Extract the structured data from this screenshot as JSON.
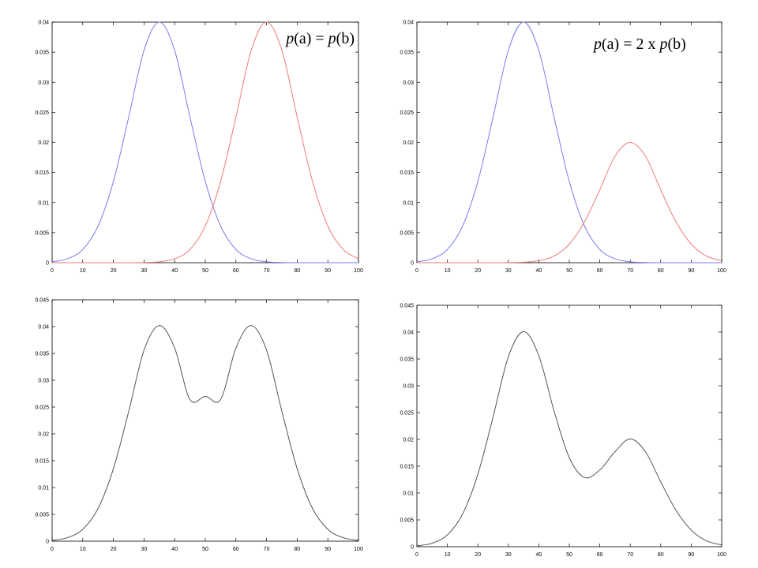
{
  "chart_data": [
    {
      "type": "line",
      "position": "top-left",
      "annotation": {
        "text": "p(a) = p(b)",
        "parts": [
          {
            "text": "p",
            "italic": true
          },
          {
            "text": "(a) = ",
            "italic": false
          },
          {
            "text": "p",
            "italic": true
          },
          {
            "text": "(b)",
            "italic": false
          }
        ]
      },
      "xlim": [
        0,
        100
      ],
      "ylim": [
        0,
        0.04
      ],
      "xticks": [
        0,
        10,
        20,
        30,
        40,
        50,
        60,
        70,
        80,
        90,
        100
      ],
      "yticks": [
        0,
        0.005,
        0.01,
        0.015,
        0.02,
        0.025,
        0.03,
        0.035,
        0.04
      ],
      "yticklabels": [
        "0",
        "0.005",
        "0.01",
        "0.015",
        "0.02",
        "0.025",
        "0.03",
        "0.035",
        "0.04"
      ],
      "x": [
        0,
        5,
        10,
        15,
        20,
        25,
        30,
        35,
        40,
        45,
        50,
        55,
        60,
        65,
        70,
        75,
        80,
        85,
        90,
        95,
        100
      ],
      "series": [
        {
          "color": "#7b7bef",
          "values": [
            0.00015,
            0.00065,
            0.0022,
            0.0061,
            0.0135,
            0.0242,
            0.0353,
            0.04,
            0.0353,
            0.0242,
            0.0135,
            0.0061,
            0.0022,
            0.00065,
            0.00015,
            3e-05,
            0.0,
            0.0,
            0.0,
            0.0,
            0.0
          ]
        },
        {
          "color": "#ef7b7b",
          "values": [
            0.0,
            0.0,
            0.0,
            0.0,
            0.0,
            0.0,
            3e-05,
            0.00015,
            0.00065,
            0.0022,
            0.0061,
            0.0135,
            0.0242,
            0.0353,
            0.04,
            0.0353,
            0.0242,
            0.0135,
            0.0061,
            0.0022,
            0.00065
          ]
        }
      ]
    },
    {
      "type": "line",
      "position": "top-right",
      "annotation": {
        "text": "p(a) = 2 x p(b)",
        "parts": [
          {
            "text": "p",
            "italic": true
          },
          {
            "text": "(a) = 2 x ",
            "italic": false
          },
          {
            "text": "p",
            "italic": true
          },
          {
            "text": "(b)",
            "italic": false
          }
        ]
      },
      "xlim": [
        0,
        100
      ],
      "ylim": [
        0,
        0.04
      ],
      "xticks": [
        0,
        10,
        20,
        30,
        40,
        50,
        60,
        70,
        80,
        90,
        100
      ],
      "yticks": [
        0,
        0.005,
        0.01,
        0.015,
        0.02,
        0.025,
        0.03,
        0.035,
        0.04
      ],
      "yticklabels": [
        "0",
        "0.005",
        "0.01",
        "0.015",
        "0.02",
        "0.025",
        "0.03",
        "0.035",
        "0.04"
      ],
      "x": [
        0,
        5,
        10,
        15,
        20,
        25,
        30,
        35,
        40,
        45,
        50,
        55,
        60,
        65,
        70,
        75,
        80,
        85,
        90,
        95,
        100
      ],
      "series": [
        {
          "color": "#7b7bef",
          "values": [
            0.00015,
            0.00065,
            0.0022,
            0.0061,
            0.0135,
            0.0242,
            0.0353,
            0.04,
            0.0353,
            0.0242,
            0.0135,
            0.0061,
            0.0022,
            0.00065,
            0.00015,
            3e-05,
            0.0,
            0.0,
            0.0,
            0.0,
            0.0
          ]
        },
        {
          "color": "#ef7b7b",
          "values": [
            0.0,
            0.0,
            0.0,
            0.0,
            0.0,
            0.0,
            2e-05,
            8e-05,
            0.00033,
            0.0011,
            0.0031,
            0.0068,
            0.0121,
            0.0177,
            0.02,
            0.0177,
            0.0121,
            0.0068,
            0.0031,
            0.0011,
            0.00033
          ]
        }
      ]
    },
    {
      "type": "line",
      "position": "bottom-left",
      "xlim": [
        0,
        100
      ],
      "ylim": [
        0,
        0.045
      ],
      "xticks": [
        0,
        10,
        20,
        30,
        40,
        50,
        60,
        70,
        80,
        90,
        100
      ],
      "yticks": [
        0,
        0.005,
        0.01,
        0.015,
        0.02,
        0.025,
        0.03,
        0.035,
        0.04,
        0.045
      ],
      "yticklabels": [
        "0",
        "0.005",
        "0.01",
        "0.015",
        "0.02",
        "0.025",
        "0.03",
        "0.035",
        "0.04",
        "0.045"
      ],
      "x": [
        0,
        5,
        10,
        15,
        20,
        25,
        30,
        35,
        40,
        45,
        50,
        55,
        60,
        65,
        70,
        75,
        80,
        85,
        90,
        95,
        100
      ],
      "series": [
        {
          "color": "#555555",
          "values": [
            0.00015,
            0.00065,
            0.0022,
            0.0061,
            0.0135,
            0.0242,
            0.0356,
            0.0402,
            0.036,
            0.0264,
            0.027,
            0.0264,
            0.036,
            0.0402,
            0.0356,
            0.0242,
            0.0135,
            0.0061,
            0.0022,
            0.00065,
            0.00015
          ]
        }
      ]
    },
    {
      "type": "line",
      "position": "bottom-right",
      "xlim": [
        0,
        100
      ],
      "ylim": [
        0,
        0.045
      ],
      "xticks": [
        0,
        10,
        20,
        30,
        40,
        50,
        60,
        70,
        80,
        90,
        100
      ],
      "yticks": [
        0,
        0.005,
        0.01,
        0.015,
        0.02,
        0.025,
        0.03,
        0.035,
        0.04,
        0.045
      ],
      "yticklabels": [
        "0",
        "0.005",
        "0.01",
        "0.015",
        "0.02",
        "0.025",
        "0.03",
        "0.035",
        "0.04",
        "0.045"
      ],
      "x": [
        0,
        5,
        10,
        15,
        20,
        25,
        30,
        35,
        40,
        45,
        50,
        55,
        60,
        65,
        70,
        75,
        80,
        85,
        90,
        95,
        100
      ],
      "series": [
        {
          "color": "#555555",
          "values": [
            0.00015,
            0.00065,
            0.0022,
            0.0061,
            0.0135,
            0.0242,
            0.0354,
            0.0401,
            0.0356,
            0.0253,
            0.0166,
            0.0129,
            0.0143,
            0.0177,
            0.0201,
            0.0177,
            0.0121,
            0.0068,
            0.0031,
            0.0011,
            0.00033
          ]
        }
      ]
    }
  ]
}
